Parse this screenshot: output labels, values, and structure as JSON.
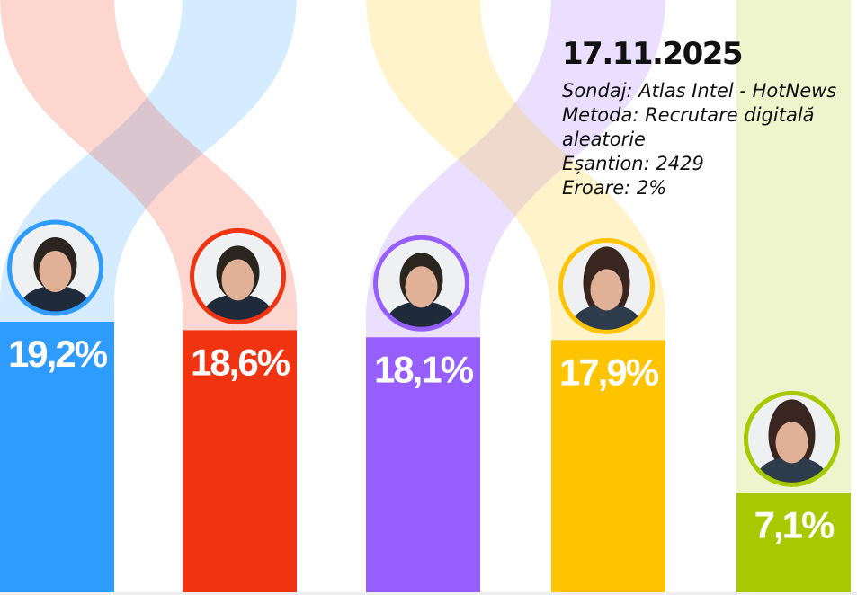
{
  "chart_data": {
    "type": "bar",
    "unit": "%",
    "series": [
      {
        "values": [
          19.2,
          18.6,
          18.1,
          17.9,
          7.1
        ]
      }
    ],
    "value_labels": [
      "19,2%",
      "18,6%",
      "18,1%",
      "17,9%",
      "7,1%"
    ],
    "colors": [
      "#2e9bff",
      "#f03311",
      "#965dff",
      "#ffc400",
      "#a8c800"
    ],
    "ribbon_order_top": [
      1,
      0,
      3,
      2,
      4
    ],
    "avatars": [
      "male-candidate-photo",
      "male-candidate-photo",
      "male-candidate-photo",
      "female-candidate-photo",
      "female-candidate-photo"
    ],
    "ylim": [
      0,
      20
    ],
    "grid": false,
    "legend": "none"
  },
  "info": {
    "date": "17.11.2025",
    "lines": [
      "Sondaj: Atlas Intel - HotNews",
      "Metoda: Recrutare digitală",
      "aleatorie",
      "Eșantion: 2429",
      "Eroare: 2%"
    ]
  }
}
